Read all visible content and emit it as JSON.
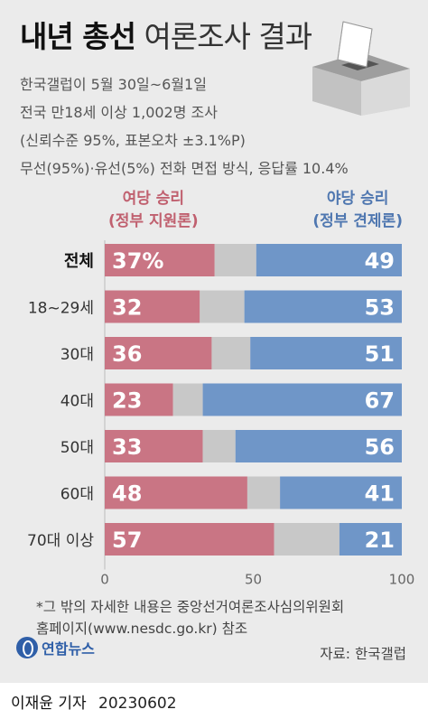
{
  "header": {
    "title_bold": "내년 총선",
    "title_light": "여론조사 결과"
  },
  "survey_info": [
    "한국갤럽이 5월 30일~6월1일",
    "전국 만18세 이상 1,002명 조사",
    "(신뢰수준 95%, 표본오차 ±3.1%P)",
    "무선(95%)·유선(5%) 전화 면접 방식, 응답률 10.4%"
  ],
  "legend": {
    "ruling_line1": "여당 승리",
    "ruling_line2": "(정부 지원론)",
    "opposition_line1": "야당 승리",
    "opposition_line2": "(정부 견제론)"
  },
  "colors": {
    "ruling": "#c97584",
    "neutral": "#c8c8c8",
    "opposition": "#6f96c8"
  },
  "chart_data": {
    "type": "bar",
    "orientation": "horizontal-stacked",
    "categories": [
      "전체",
      "18~29세",
      "30대",
      "40대",
      "50대",
      "60대",
      "70대 이상"
    ],
    "series": [
      {
        "name": "여당 승리 (정부 지원론)",
        "values": [
          37,
          32,
          36,
          23,
          33,
          48,
          57
        ],
        "labels": [
          "37%",
          "32",
          "36",
          "23",
          "33",
          "48",
          "57"
        ]
      },
      {
        "name": "",
        "values": [
          14,
          15,
          13,
          10,
          11,
          11,
          22
        ]
      },
      {
        "name": "야당 승리 (정부 견제론)",
        "values": [
          49,
          53,
          51,
          67,
          56,
          41,
          21
        ],
        "labels": [
          "49",
          "53",
          "51",
          "67",
          "56",
          "41",
          "21"
        ]
      }
    ],
    "xlim": [
      0,
      100
    ],
    "xticks": [
      "0",
      "50",
      "100"
    ]
  },
  "footer": {
    "note_line1": "*그 밖의 자세한 내용은 중앙선거여론조사심의위원회",
    "note_line2": "홈페이지(www.nesdc.go.kr) 참조",
    "logo_text": "연합뉴스",
    "source": "자료: 한국갤럽",
    "reporter": "이재윤 기자",
    "date": "20230602"
  }
}
